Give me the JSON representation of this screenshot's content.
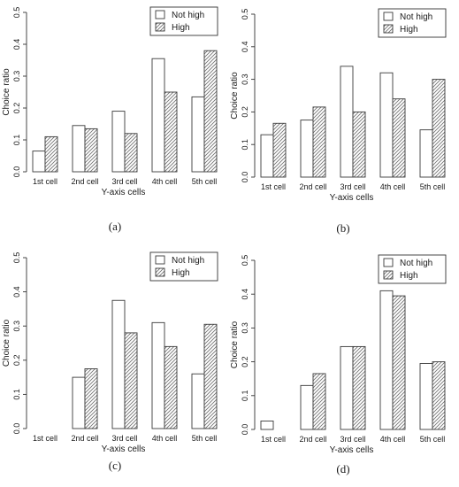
{
  "chart_data": [
    {
      "type": "bar",
      "panel_label": "(a)",
      "categories": [
        "1st cell",
        "2nd cell",
        "3rd cell",
        "4th cell",
        "5th cell"
      ],
      "series": [
        {
          "name": "Not high",
          "values": [
            0.065,
            0.145,
            0.19,
            0.355,
            0.235
          ]
        },
        {
          "name": "High",
          "values": [
            0.11,
            0.135,
            0.12,
            0.25,
            0.38
          ]
        }
      ],
      "xlabel": "Y-axis cells",
      "ylabel": "Choice ratio",
      "ylim": [
        0,
        0.5
      ],
      "yticks": [
        "0.0",
        "0.1",
        "0.2",
        "0.3",
        "0.4",
        "0.5"
      ],
      "legend": "top-right",
      "grid": false
    },
    {
      "type": "bar",
      "panel_label": "(b)",
      "categories": [
        "1st cell",
        "2nd cell",
        "3rd cell",
        "4th cell",
        "5th cell"
      ],
      "series": [
        {
          "name": "Not high",
          "values": [
            0.13,
            0.175,
            0.34,
            0.32,
            0.145
          ]
        },
        {
          "name": "High",
          "values": [
            0.165,
            0.215,
            0.2,
            0.24,
            0.3
          ]
        }
      ],
      "xlabel": "Y-axis cells",
      "ylabel": "Choice ratio",
      "ylim": [
        0,
        0.5
      ],
      "yticks": [
        "0.0",
        "0.1",
        "0.2",
        "0.3",
        "0.4",
        "0.5"
      ],
      "legend": "top-right",
      "grid": false
    },
    {
      "type": "bar",
      "panel_label": "(c)",
      "categories": [
        "1st cell",
        "2nd cell",
        "3rd cell",
        "4th cell",
        "5th cell"
      ],
      "series": [
        {
          "name": "Not high",
          "values": [
            0.0,
            0.15,
            0.375,
            0.31,
            0.16
          ]
        },
        {
          "name": "High",
          "values": [
            0.0,
            0.175,
            0.28,
            0.24,
            0.305
          ]
        }
      ],
      "xlabel": "Y-axis cells",
      "ylabel": "Choice ratio",
      "ylim": [
        0,
        0.5
      ],
      "yticks": [
        "0.0",
        "0.1",
        "0.2",
        "0.3",
        "0.4",
        "0.5"
      ],
      "legend": "top-right",
      "grid": false
    },
    {
      "type": "bar",
      "panel_label": "(d)",
      "categories": [
        "1st cell",
        "2nd cell",
        "3rd cell",
        "4th cell",
        "5th cell"
      ],
      "series": [
        {
          "name": "Not high",
          "values": [
            0.025,
            0.13,
            0.245,
            0.41,
            0.195
          ]
        },
        {
          "name": "High",
          "values": [
            0.0,
            0.165,
            0.245,
            0.395,
            0.2
          ]
        }
      ],
      "xlabel": "Y-axis cells",
      "ylabel": "Choice ratio",
      "ylim": [
        0,
        0.5
      ],
      "yticks": [
        "0.0",
        "0.1",
        "0.2",
        "0.3",
        "0.4",
        "0.5"
      ],
      "legend": "top-right",
      "grid": false
    }
  ]
}
